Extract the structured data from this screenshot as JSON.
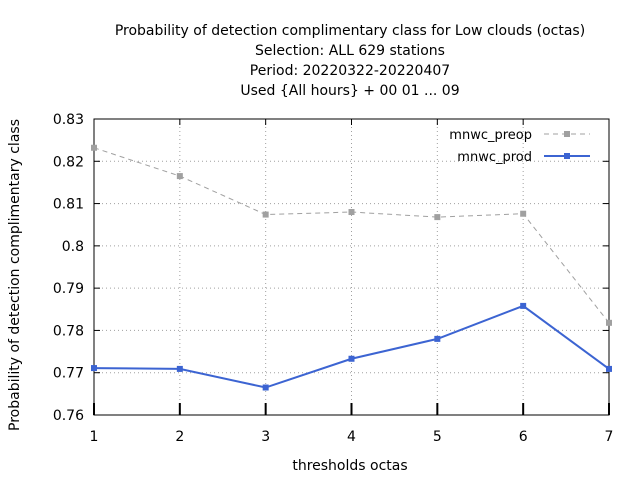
{
  "chart_data": {
    "type": "line",
    "title_lines": [
      "Probability of detection complimentary class  for Low clouds (octas)",
      "Selection: ALL    629 stations",
      "Period: 20220322-20220407",
      "Used {All hours} + 00 01 ... 09"
    ],
    "xlabel": "thresholds octas",
    "ylabel": "Probability of detection complimentary class",
    "x": [
      1,
      2,
      3,
      4,
      5,
      6,
      7
    ],
    "xlim": [
      1,
      7
    ],
    "ylim": [
      0.76,
      0.83
    ],
    "x_ticks": [
      "1",
      "2",
      "3",
      "4",
      "5",
      "6",
      "7"
    ],
    "y_ticks": [
      "0.76",
      "0.77",
      "0.78",
      "0.79",
      "0.8",
      "0.81",
      "0.82",
      "0.83"
    ],
    "grid": true,
    "legend_position": "top-right",
    "series": [
      {
        "name": "mnwc_preop",
        "color": "#a0a0a0",
        "dash": "dashed",
        "values": [
          0.8232,
          0.8165,
          0.8074,
          0.808,
          0.8068,
          0.8076,
          0.7818
        ]
      },
      {
        "name": "mnwc_prod",
        "color": "#3c64d2",
        "dash": "solid",
        "values": [
          0.7711,
          0.7709,
          0.7665,
          0.7733,
          0.778,
          0.7858,
          0.7709
        ]
      }
    ]
  }
}
